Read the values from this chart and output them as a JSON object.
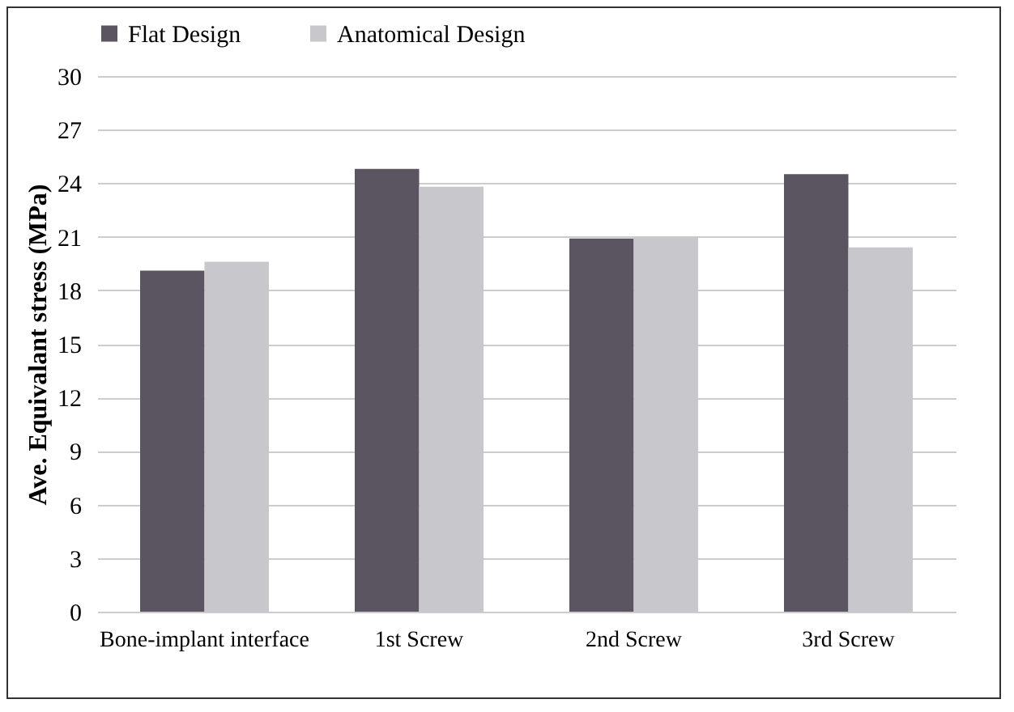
{
  "chart_data": {
    "type": "bar",
    "ylabel": "Ave. Equivalant stress (MPa)",
    "categories": [
      "Bone-implant interface",
      "1st Screw",
      "2nd Screw",
      "3rd Screw"
    ],
    "series": [
      {
        "name": "Flat Design",
        "color": "#5a5560",
        "values": [
          19.1,
          24.8,
          20.9,
          24.5
        ]
      },
      {
        "name": "Anatomical Design",
        "color": "#c8c8cc",
        "values": [
          19.6,
          23.8,
          21.0,
          20.4
        ]
      }
    ],
    "ylim": [
      0,
      30
    ],
    "yticks": [
      0,
      3,
      6,
      9,
      12,
      15,
      18,
      21,
      24,
      27,
      30
    ],
    "grid": "y",
    "legend": "top"
  }
}
